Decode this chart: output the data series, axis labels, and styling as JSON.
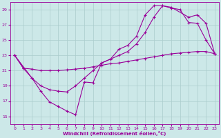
{
  "xlabel": "Windchill (Refroidissement éolien,°C)",
  "bg_color": "#cce8e8",
  "line_color": "#990099",
  "grid_color": "#aacccc",
  "xlim": [
    -0.5,
    23.5
  ],
  "ylim": [
    14,
    30
  ],
  "xticks": [
    0,
    1,
    2,
    3,
    4,
    5,
    6,
    7,
    8,
    9,
    10,
    11,
    12,
    13,
    14,
    15,
    16,
    17,
    18,
    19,
    20,
    21,
    22,
    23
  ],
  "yticks": [
    15,
    17,
    19,
    21,
    23,
    25,
    27,
    29
  ],
  "line1_x": [
    0,
    1,
    2,
    3,
    4,
    5,
    6,
    7,
    8,
    9,
    10,
    11,
    12,
    13,
    14,
    15,
    16,
    17,
    18,
    19,
    20,
    21,
    22,
    23
  ],
  "line1_y": [
    23.0,
    21.3,
    20.0,
    18.3,
    16.9,
    16.3,
    15.7,
    15.2,
    19.5,
    19.4,
    22.0,
    22.5,
    23.8,
    24.3,
    25.5,
    28.3,
    29.5,
    29.5,
    29.2,
    29.0,
    27.3,
    27.2,
    25.0,
    23.2
  ],
  "line2_x": [
    0,
    2,
    3,
    4,
    5,
    6,
    7,
    8,
    9,
    10,
    11,
    12,
    13,
    14,
    15,
    16,
    17,
    18,
    20,
    21,
    22,
    23
  ],
  "line2_y": [
    23.0,
    20.0,
    19.0,
    18.5,
    18.3,
    18.2,
    19.0,
    20.0,
    21.0,
    22.0,
    22.5,
    23.0,
    23.5,
    24.5,
    26.0,
    28.0,
    29.5,
    29.3,
    28.0,
    28.3,
    27.2,
    23.2
  ],
  "line3_x": [
    0,
    1,
    2,
    3,
    4,
    5,
    6,
    7,
    8,
    9,
    10,
    11,
    12,
    13,
    14,
    15,
    16,
    17,
    18,
    19,
    20,
    21,
    22,
    23
  ],
  "line3_y": [
    23.0,
    21.3,
    21.2,
    21.0,
    21.0,
    21.0,
    21.1,
    21.2,
    21.3,
    21.5,
    21.7,
    21.9,
    22.0,
    22.2,
    22.4,
    22.6,
    22.8,
    23.0,
    23.2,
    23.3,
    23.4,
    23.5,
    23.5,
    23.2
  ]
}
